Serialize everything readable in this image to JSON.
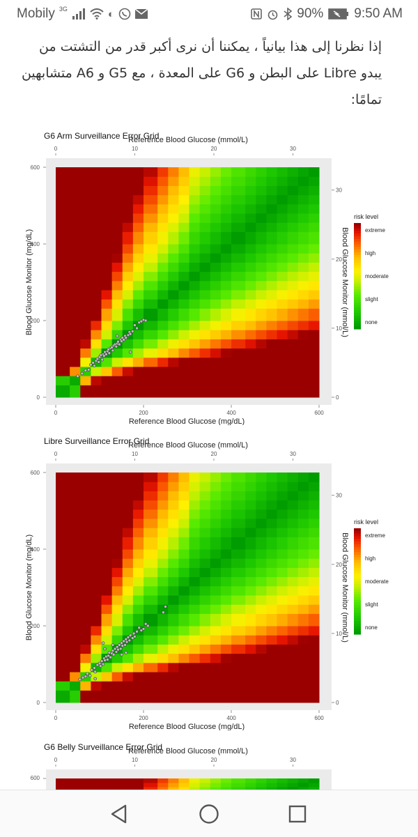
{
  "status_bar": {
    "carrier": "Mobily",
    "network": "3G",
    "battery": "90%",
    "time": "9:50 AM"
  },
  "article": {
    "paragraph": "إذا نظرنا إلى هذا بيانياً ، يمكننا أن نرى أكبر قدر من التشتت من يبدو Libre على البطن و G6 على المعدة ، مع G5 و A6 متشابهين تمامًا:"
  },
  "charts": [
    {
      "title": "G6 Arm Surveillance Error Grid",
      "x_top_label": "Reference Blood Glucose (mmol/L)",
      "x_bottom_label": "Reference Blood Glucose (mg/dL)",
      "y_left_label": "Blood Glucose Monitor (mg/dL)",
      "y_right_label": "Blood Glucose Monitor (mmol/L)",
      "x_ticks_mgdl": [
        "0",
        "200",
        "400",
        "600"
      ],
      "x_ticks_mmol": [
        "0",
        "10",
        "20",
        "30"
      ],
      "y_ticks_mgdl": [
        "0",
        "200",
        "400",
        "600"
      ],
      "y_ticks_mmol": [
        "0",
        "10",
        "20",
        "30"
      ],
      "legend_title": "risk level",
      "legend_labels": [
        "extreme",
        "high",
        "moderate",
        "slight",
        "none"
      ]
    },
    {
      "title": "Libre Surveillance Error Grid",
      "x_top_label": "Reference Blood Glucose (mmol/L)",
      "x_bottom_label": "Reference Blood Glucose (mg/dL)",
      "y_left_label": "Blood Glucose Monitor (mg/dL)",
      "y_right_label": "Blood Glucose Monitor (mmol/L)",
      "x_ticks_mgdl": [
        "0",
        "200",
        "400",
        "600"
      ],
      "x_ticks_mmol": [
        "0",
        "10",
        "20",
        "30"
      ],
      "y_ticks_mgdl": [
        "0",
        "200",
        "400",
        "600"
      ],
      "y_ticks_mmol": [
        "0",
        "10",
        "20",
        "30"
      ],
      "legend_title": "risk level",
      "legend_labels": [
        "extreme",
        "high",
        "moderate",
        "slight",
        "none"
      ]
    },
    {
      "title": "G6 Belly Surveillance Error Grid",
      "x_top_label": "Reference Blood Glucose (mmol/L)",
      "x_ticks_mmol": [
        "0",
        "10",
        "20",
        "30"
      ],
      "y_ticks_mgdl": [
        "600"
      ]
    }
  ],
  "chart_data": [
    {
      "type": "heatmap",
      "title": "G6 Arm Surveillance Error Grid",
      "xlabel": "Reference Blood Glucose (mg/dL)",
      "ylabel": "Blood Glucose Monitor (mg/dL)",
      "xlim": [
        0,
        600
      ],
      "ylim": [
        0,
        600
      ],
      "legend": "right",
      "risk_levels": [
        "extreme",
        "high",
        "moderate",
        "slight",
        "none"
      ],
      "points": [
        [
          50,
          55
        ],
        [
          60,
          62
        ],
        [
          68,
          70
        ],
        [
          75,
          72
        ],
        [
          80,
          85
        ],
        [
          85,
          90
        ],
        [
          88,
          82
        ],
        [
          92,
          95
        ],
        [
          95,
          100
        ],
        [
          98,
          92
        ],
        [
          100,
          105
        ],
        [
          103,
          110
        ],
        [
          106,
          98
        ],
        [
          108,
          112
        ],
        [
          110,
          108
        ],
        [
          112,
          118
        ],
        [
          115,
          112
        ],
        [
          118,
          120
        ],
        [
          120,
          125
        ],
        [
          122,
          115
        ],
        [
          125,
          128
        ],
        [
          128,
          130
        ],
        [
          130,
          122
        ],
        [
          132,
          135
        ],
        [
          135,
          138
        ],
        [
          138,
          132
        ],
        [
          140,
          140
        ],
        [
          142,
          145
        ],
        [
          145,
          138
        ],
        [
          148,
          150
        ],
        [
          150,
          146
        ],
        [
          152,
          155
        ],
        [
          155,
          150
        ],
        [
          158,
          160
        ],
        [
          160,
          155
        ],
        [
          165,
          162
        ],
        [
          168,
          170
        ],
        [
          170,
          165
        ],
        [
          175,
          172
        ],
        [
          180,
          188
        ],
        [
          185,
          180
        ],
        [
          190,
          195
        ],
        [
          195,
          198
        ],
        [
          200,
          202
        ],
        [
          205,
          200
        ],
        [
          170,
          118
        ],
        [
          140,
          160
        ]
      ]
    },
    {
      "type": "heatmap",
      "title": "Libre Surveillance Error Grid",
      "xlabel": "Reference Blood Glucose (mg/dL)",
      "ylabel": "Blood Glucose Monitor (mg/dL)",
      "xlim": [
        0,
        600
      ],
      "ylim": [
        0,
        600
      ],
      "legend": "right",
      "risk_levels": [
        "extreme",
        "high",
        "moderate",
        "slight",
        "none"
      ],
      "points": [
        [
          55,
          60
        ],
        [
          62,
          65
        ],
        [
          68,
          68
        ],
        [
          72,
          75
        ],
        [
          78,
          70
        ],
        [
          82,
          85
        ],
        [
          88,
          90
        ],
        [
          90,
          80
        ],
        [
          95,
          98
        ],
        [
          100,
          102
        ],
        [
          102,
          95
        ],
        [
          105,
          108
        ],
        [
          108,
          100
        ],
        [
          110,
          115
        ],
        [
          112,
          110
        ],
        [
          115,
          120
        ],
        [
          118,
          112
        ],
        [
          120,
          122
        ],
        [
          122,
          130
        ],
        [
          125,
          118
        ],
        [
          128,
          128
        ],
        [
          130,
          135
        ],
        [
          132,
          125
        ],
        [
          135,
          140
        ],
        [
          138,
          132
        ],
        [
          140,
          145
        ],
        [
          142,
          138
        ],
        [
          145,
          150
        ],
        [
          148,
          140
        ],
        [
          150,
          155
        ],
        [
          152,
          148
        ],
        [
          155,
          160
        ],
        [
          158,
          150
        ],
        [
          160,
          165
        ],
        [
          162,
          158
        ],
        [
          165,
          170
        ],
        [
          168,
          162
        ],
        [
          170,
          175
        ],
        [
          175,
          168
        ],
        [
          178,
          180
        ],
        [
          180,
          172
        ],
        [
          185,
          185
        ],
        [
          190,
          195
        ],
        [
          195,
          188
        ],
        [
          200,
          192
        ],
        [
          205,
          205
        ],
        [
          210,
          200
        ],
        [
          245,
          235
        ],
        [
          250,
          250
        ],
        [
          112,
          140
        ],
        [
          130,
          150
        ],
        [
          108,
          155
        ],
        [
          160,
          130
        ],
        [
          150,
          125
        ],
        [
          90,
          62
        ]
      ]
    },
    {
      "type": "heatmap",
      "title": "G6 Belly Surveillance Error Grid",
      "xlabel": "Reference Blood Glucose (mmol/L)",
      "ylabel": "",
      "xlim": [
        0,
        600
      ],
      "ylim": [
        0,
        600
      ],
      "risk_levels": [
        "extreme",
        "high",
        "moderate",
        "slight",
        "none"
      ],
      "points": []
    }
  ]
}
